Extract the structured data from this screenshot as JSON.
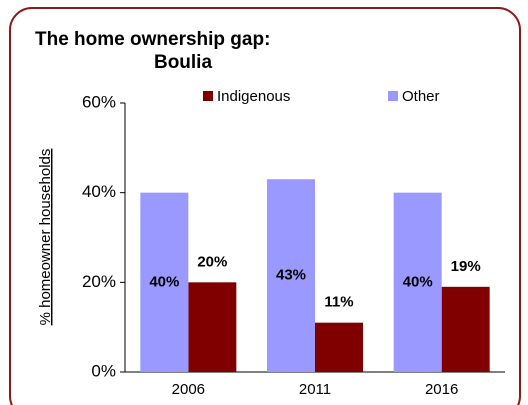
{
  "chart_data": {
    "type": "bar",
    "title": "The home ownership gap:",
    "subtitle": "Boulia",
    "ylabel": "% homeowner households",
    "categories": [
      "2006",
      "2011",
      "2016"
    ],
    "series": [
      {
        "name": "Indigenous",
        "color": "#800000",
        "values": [
          20,
          11,
          19
        ],
        "value_labels": [
          "20%",
          "11%",
          "19%"
        ]
      },
      {
        "name": "Other",
        "color": "#9999ff",
        "values": [
          40,
          43,
          40
        ],
        "value_labels": [
          "40%",
          "43%",
          "40%"
        ]
      }
    ],
    "ylim": [
      0,
      60
    ],
    "yticks": [
      {
        "value": 0,
        "label": "0%"
      },
      {
        "value": 20,
        "label": "20%"
      },
      {
        "value": 40,
        "label": "40%"
      },
      {
        "value": 60,
        "label": "60%"
      }
    ],
    "legend": "top"
  }
}
